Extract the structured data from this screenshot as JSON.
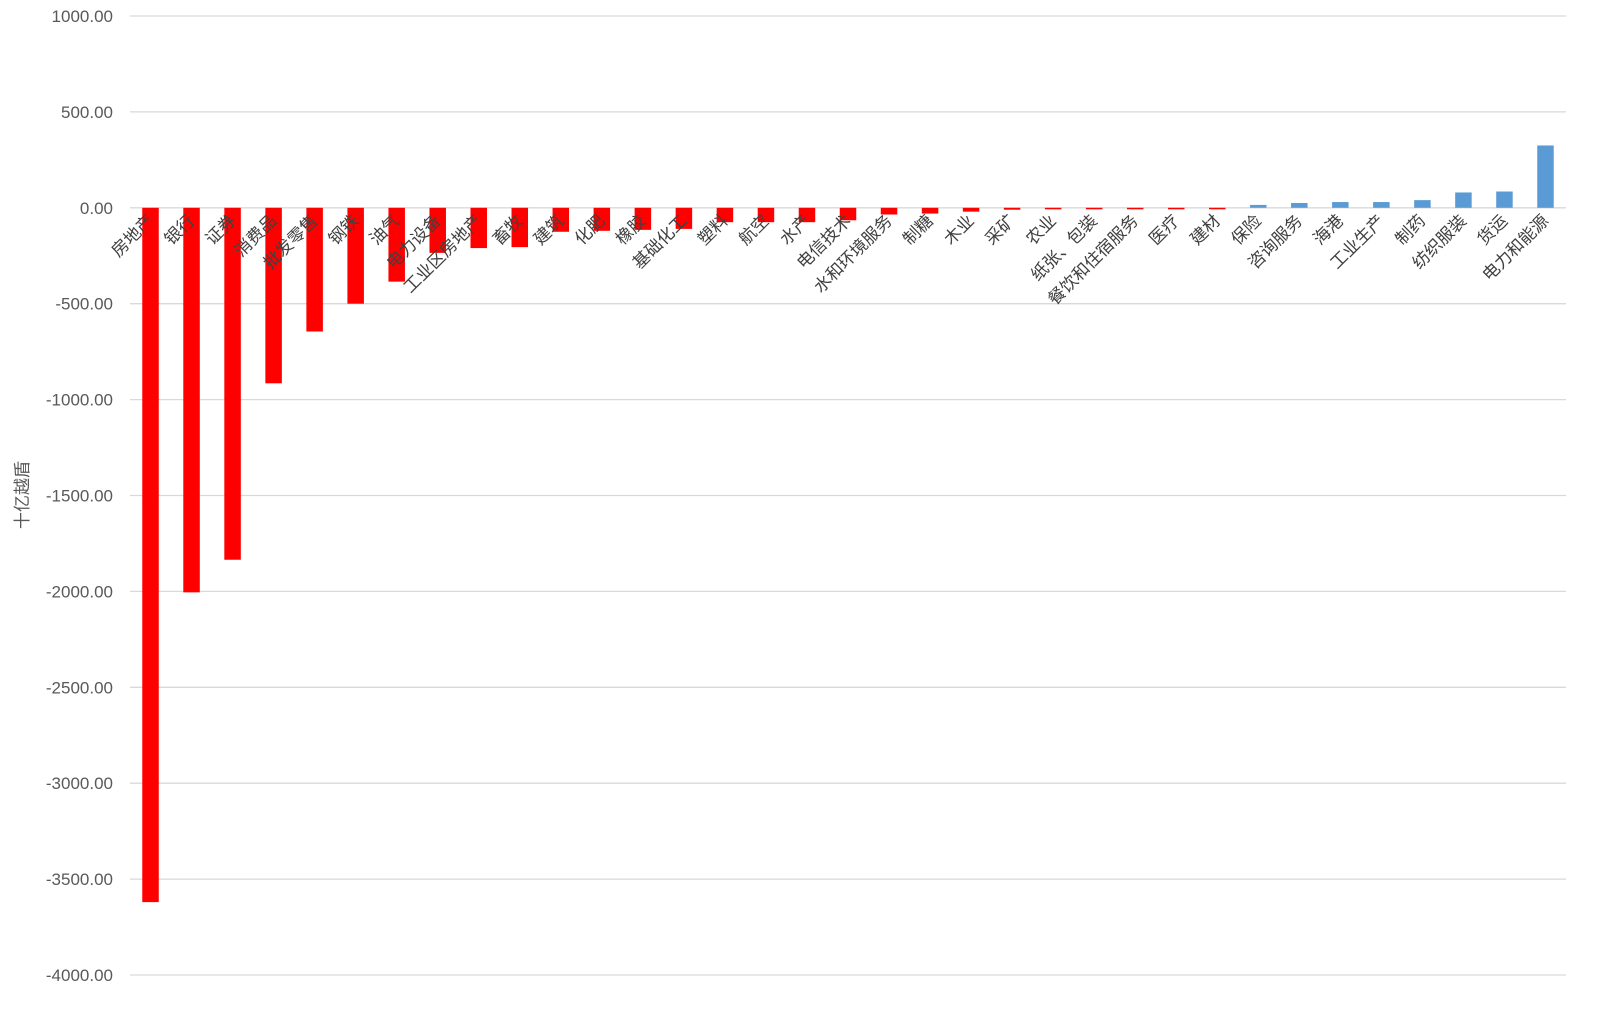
{
  "chart_data": {
    "type": "bar",
    "ylabel": "十亿越盾",
    "ylim": [
      -4000,
      1000
    ],
    "ytick_step": 500,
    "ytick_labels": [
      "1000.00",
      "500.00",
      "0.00",
      "-500.00",
      "-1000.00",
      "-1500.00",
      "-2000.00",
      "-2500.00",
      "-3000.00",
      "-3500.00",
      "-4000.00"
    ],
    "grid": true,
    "colors": {
      "negative": "#ff0000",
      "positive": "#5b9bd5"
    },
    "categories": [
      "房地产",
      "银行",
      "证券",
      "消费品",
      "批发零售",
      "钢铁",
      "油气",
      "电力设备",
      "工业区房地产",
      "畜牧",
      "建筑",
      "化肥",
      "橡胶",
      "基础化工",
      "塑料",
      "航空",
      "水产",
      "电信技术",
      "水和环境服务",
      "制糖",
      "木业",
      "采矿",
      "农业",
      "纸张、包装",
      "餐饮和住宿服务",
      "医疗",
      "建材",
      "保险",
      "咨询服务",
      "海港",
      "工业生产",
      "制药",
      "纺织服装",
      "货运",
      "电力和能源"
    ],
    "values": [
      -3620,
      -2005,
      -1835,
      -915,
      -645,
      -500,
      -385,
      -235,
      -210,
      -205,
      -125,
      -120,
      -115,
      -110,
      -75,
      -75,
      -75,
      -65,
      -35,
      -30,
      -20,
      -10,
      -3,
      -3,
      -3,
      -3,
      -3,
      15,
      25,
      30,
      30,
      40,
      80,
      85,
      325
    ]
  }
}
